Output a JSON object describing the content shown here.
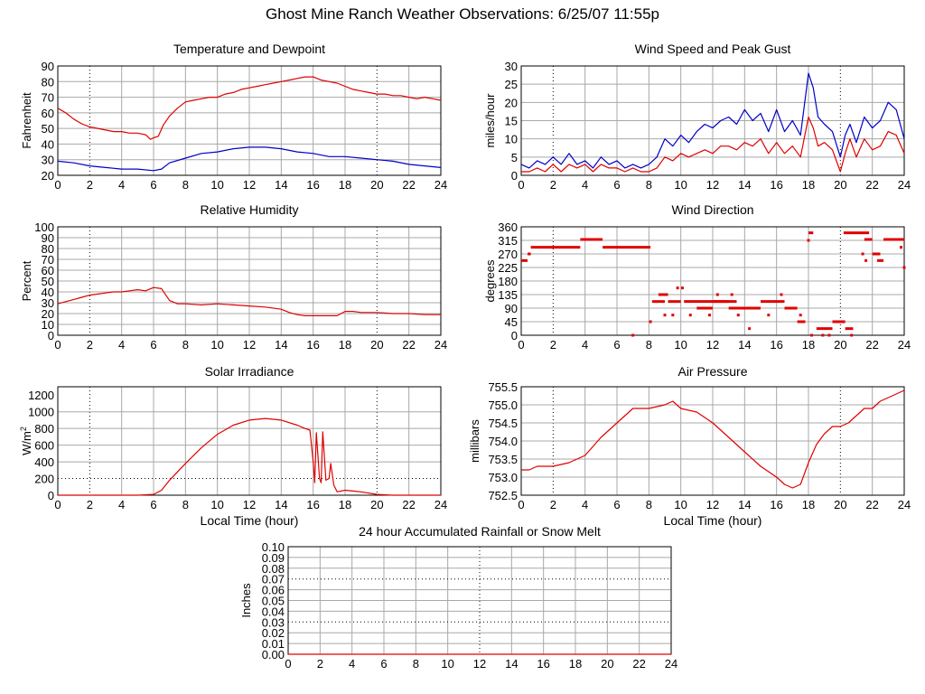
{
  "title": "Ghost Mine Ranch Weather Observations: 6/25/07 11:55p",
  "colors": {
    "red": "#e00000",
    "blue": "#0000c8",
    "grid": "#a8a8a8",
    "frame": "#000000"
  },
  "chart_data": [
    {
      "id": "temp",
      "type": "line",
      "title": "Temperature and Dewpoint",
      "ylabel": "Fahrenheit",
      "xlabel": "",
      "xlim": [
        0,
        24
      ],
      "ylim": [
        20,
        90
      ],
      "xticks": [
        0,
        2,
        4,
        6,
        8,
        10,
        12,
        14,
        16,
        18,
        20,
        22,
        24
      ],
      "yticks": [
        20,
        30,
        40,
        50,
        60,
        70,
        80,
        90
      ],
      "series": [
        {
          "color": "red",
          "x": [
            0,
            0.5,
            1,
            1.5,
            2,
            2.5,
            3,
            3.5,
            4,
            4.5,
            5,
            5.5,
            5.8,
            6,
            6.3,
            6.6,
            7,
            7.5,
            8,
            8.5,
            9,
            9.5,
            10,
            10.5,
            11,
            11.5,
            12,
            12.5,
            13,
            13.5,
            14,
            14.5,
            15,
            15.5,
            16,
            16.5,
            17,
            17.5,
            18,
            18.5,
            19,
            19.5,
            20,
            20.5,
            21,
            21.5,
            22,
            22.5,
            23,
            23.5,
            24
          ],
          "y": [
            63,
            60,
            56,
            53,
            51,
            50,
            49,
            48,
            48,
            47,
            47,
            46,
            43,
            44,
            45,
            52,
            58,
            63,
            67,
            68,
            69,
            70,
            70,
            72,
            73,
            75,
            76,
            77,
            78,
            79,
            80,
            81,
            82,
            83,
            83,
            81,
            80,
            79,
            77,
            75,
            74,
            73,
            72,
            72,
            71,
            71,
            70,
            69,
            70,
            69,
            68
          ]
        },
        {
          "color": "blue",
          "x": [
            0,
            1,
            2,
            3,
            4,
            5,
            6,
            6.5,
            7,
            8,
            9,
            10,
            11,
            12,
            13,
            14,
            15,
            16,
            17,
            18,
            19,
            20,
            21,
            22,
            23,
            24
          ],
          "y": [
            29,
            28,
            26,
            25,
            24,
            24,
            23,
            24,
            28,
            31,
            34,
            35,
            37,
            38,
            38,
            37,
            35,
            34,
            32,
            32,
            31,
            30,
            29,
            27,
            26,
            25
          ]
        }
      ]
    },
    {
      "id": "wind",
      "type": "line",
      "title": "Wind Speed and Peak Gust",
      "ylabel": "miles/hour",
      "xlabel": "",
      "xlim": [
        0,
        24
      ],
      "ylim": [
        0,
        30
      ],
      "xticks": [
        0,
        2,
        4,
        6,
        8,
        10,
        12,
        14,
        16,
        18,
        20,
        22,
        24
      ],
      "yticks": [
        0,
        5,
        10,
        15,
        20,
        25,
        30
      ],
      "series": [
        {
          "color": "blue",
          "x": [
            0,
            0.5,
            1,
            1.5,
            2,
            2.5,
            3,
            3.5,
            4,
            4.5,
            5,
            5.5,
            6,
            6.5,
            7,
            7.5,
            8,
            8.5,
            9,
            9.5,
            10,
            10.5,
            11,
            11.5,
            12,
            12.5,
            13,
            13.5,
            14,
            14.5,
            15,
            15.5,
            16,
            16.5,
            17,
            17.5,
            18,
            18.3,
            18.6,
            19,
            19.5,
            20,
            20.3,
            20.6,
            21,
            21.5,
            22,
            22.5,
            23,
            23.5,
            24
          ],
          "y": [
            3,
            2,
            4,
            3,
            5,
            3,
            6,
            3,
            4,
            2,
            5,
            3,
            4,
            2,
            3,
            2,
            3,
            5,
            10,
            8,
            11,
            9,
            12,
            14,
            13,
            15,
            16,
            14,
            18,
            15,
            17,
            12,
            18,
            12,
            15,
            11,
            28,
            24,
            16,
            14,
            12,
            5,
            11,
            14,
            9,
            16,
            13,
            15,
            20,
            18,
            10
          ]
        },
        {
          "color": "red",
          "x": [
            0,
            0.5,
            1,
            1.5,
            2,
            2.5,
            3,
            3.5,
            4,
            4.5,
            5,
            5.5,
            6,
            6.5,
            7,
            7.5,
            8,
            8.5,
            9,
            9.5,
            10,
            10.5,
            11,
            11.5,
            12,
            12.5,
            13,
            13.5,
            14,
            14.5,
            15,
            15.5,
            16,
            16.5,
            17,
            17.5,
            18,
            18.3,
            18.6,
            19,
            19.5,
            20,
            20.3,
            20.6,
            21,
            21.5,
            22,
            22.5,
            23,
            23.5,
            24
          ],
          "y": [
            1,
            1,
            2,
            1,
            3,
            1,
            3,
            2,
            3,
            1,
            3,
            2,
            2,
            1,
            2,
            1,
            1,
            2,
            5,
            4,
            6,
            5,
            6,
            7,
            6,
            8,
            8,
            7,
            9,
            8,
            10,
            6,
            9,
            6,
            8,
            5,
            16,
            13,
            8,
            9,
            7,
            1,
            6,
            10,
            5,
            10,
            7,
            8,
            12,
            11,
            6
          ]
        }
      ]
    },
    {
      "id": "humidity",
      "type": "line",
      "title": "Relative Humidity",
      "ylabel": "Percent",
      "xlabel": "",
      "xlim": [
        0,
        24
      ],
      "ylim": [
        0,
        100
      ],
      "xticks": [
        0,
        2,
        4,
        6,
        8,
        10,
        12,
        14,
        16,
        18,
        20,
        22,
        24
      ],
      "yticks": [
        0,
        10,
        20,
        30,
        40,
        50,
        60,
        70,
        80,
        90,
        100
      ],
      "series": [
        {
          "color": "red",
          "x": [
            0,
            0.5,
            1,
            1.5,
            2,
            2.5,
            3,
            3.5,
            4,
            4.5,
            5,
            5.5,
            6,
            6.5,
            7,
            7.5,
            8,
            9,
            10,
            11,
            12,
            13,
            14,
            14.5,
            15,
            15.5,
            16,
            16.5,
            17,
            17.5,
            18,
            18.5,
            19,
            20,
            21,
            22,
            23,
            24
          ],
          "y": [
            29,
            31,
            33,
            35,
            37,
            38,
            39,
            40,
            40,
            41,
            42,
            41,
            44,
            43,
            32,
            29,
            29,
            28,
            29,
            28,
            27,
            26,
            24,
            21,
            19,
            18,
            18,
            18,
            18,
            18,
            22,
            22,
            21,
            21,
            20,
            20,
            19,
            19
          ]
        }
      ]
    },
    {
      "id": "winddir",
      "type": "scatter",
      "title": "Wind Direction",
      "ylabel": "degrees",
      "xlabel": "",
      "xlim": [
        0,
        24
      ],
      "ylim": [
        0,
        360
      ],
      "xticks": [
        0,
        2,
        4,
        6,
        8,
        10,
        12,
        14,
        16,
        18,
        20,
        22,
        24
      ],
      "yticks": [
        0,
        45,
        90,
        135,
        180,
        225,
        270,
        315,
        360
      ],
      "series": [
        {
          "color": "red",
          "segments": [
            [
              0,
              0.4,
              248
            ],
            [
              0.4,
              0.6,
              270
            ],
            [
              0.6,
              3.7,
              292
            ],
            [
              3.7,
              5.1,
              318
            ],
            [
              5.1,
              8.1,
              292
            ],
            [
              8.2,
              9.0,
              112
            ],
            [
              8.6,
              9.2,
              135
            ],
            [
              9.2,
              10.0,
              112
            ],
            [
              10.2,
              13.0,
              112
            ],
            [
              11.0,
              12.0,
              90
            ],
            [
              12.0,
              13.5,
              112
            ],
            [
              13.0,
              15.0,
              90
            ],
            [
              15.0,
              16.5,
              112
            ],
            [
              16.5,
              17.3,
              90
            ],
            [
              17.3,
              17.8,
              45
            ],
            [
              18.0,
              18.3,
              340
            ],
            [
              18.5,
              19.5,
              22
            ],
            [
              19.5,
              20.3,
              45
            ],
            [
              20.3,
              20.8,
              22
            ],
            [
              20.2,
              21.0,
              340
            ],
            [
              21.0,
              21.8,
              340
            ],
            [
              21.5,
              22.0,
              318
            ],
            [
              22.0,
              22.5,
              270
            ],
            [
              22.3,
              22.7,
              248
            ],
            [
              22.7,
              24.0,
              318
            ]
          ],
          "points": [
            [
              8.1,
              45
            ],
            [
              9.0,
              67
            ],
            [
              9.5,
              67
            ],
            [
              9.8,
              157
            ],
            [
              10.1,
              157
            ],
            [
              10.6,
              67
            ],
            [
              11.8,
              67
            ],
            [
              12.3,
              135
            ],
            [
              13.2,
              135
            ],
            [
              13.6,
              67
            ],
            [
              14.3,
              22
            ],
            [
              15.5,
              67
            ],
            [
              17.5,
              67
            ],
            [
              18.0,
              315
            ],
            [
              18.2,
              0
            ],
            [
              18.9,
              0
            ],
            [
              19.3,
              0
            ],
            [
              20.7,
              0
            ],
            [
              21.4,
              270
            ],
            [
              21.6,
              248
            ],
            [
              23.8,
              292
            ],
            [
              24.0,
              225
            ],
            [
              7.0,
              0
            ],
            [
              16.3,
              135
            ]
          ]
        }
      ]
    },
    {
      "id": "solar",
      "type": "line",
      "title": "Solar Irradiance",
      "ylabel": "W/m",
      "ylabel_sup": "2",
      "xlabel": "Local Time (hour)",
      "xlim": [
        0,
        24
      ],
      "ylim": [
        0,
        1300
      ],
      "xticks": [
        0,
        2,
        4,
        6,
        8,
        10,
        12,
        14,
        16,
        18,
        20,
        22,
        24
      ],
      "yticks": [
        0,
        200,
        400,
        600,
        800,
        1000,
        1200
      ],
      "series": [
        {
          "color": "red",
          "x": [
            0,
            5,
            6,
            6.5,
            7,
            8,
            9,
            10,
            11,
            12,
            13,
            14,
            15,
            15.5,
            15.8,
            16.0,
            16.1,
            16.2,
            16.4,
            16.5,
            16.6,
            16.8,
            17.0,
            17.1,
            17.3,
            17.5,
            18,
            18.5,
            19,
            20,
            21,
            22,
            23,
            24
          ],
          "y": [
            0,
            0,
            10,
            60,
            180,
            380,
            570,
            730,
            840,
            900,
            920,
            900,
            840,
            800,
            780,
            400,
            150,
            750,
            200,
            150,
            760,
            180,
            200,
            380,
            120,
            40,
            60,
            50,
            40,
            10,
            0,
            0,
            0,
            0
          ]
        }
      ]
    },
    {
      "id": "pressure",
      "type": "line",
      "title": "Air Pressure",
      "ylabel": "millibars",
      "xlabel": "Local Time (hour)",
      "xlim": [
        0,
        24
      ],
      "ylim": [
        752.5,
        755.5
      ],
      "xticks": [
        0,
        2,
        4,
        6,
        8,
        10,
        12,
        14,
        16,
        18,
        20,
        22,
        24
      ],
      "yticks": [
        752.5,
        753.0,
        753.5,
        754.0,
        754.5,
        755.0,
        755.5
      ],
      "series": [
        {
          "color": "red",
          "x": [
            0,
            0.5,
            1,
            2,
            3,
            3.5,
            4,
            5,
            6,
            7,
            7.5,
            8,
            9,
            9.5,
            10,
            11,
            12,
            13,
            14,
            15,
            16,
            16.5,
            17,
            17.5,
            18,
            18.5,
            19,
            19.5,
            20,
            20.5,
            21,
            21.5,
            22,
            22.5,
            23,
            23.5,
            24
          ],
          "y": [
            753.2,
            753.2,
            753.3,
            753.3,
            753.4,
            753.5,
            753.6,
            754.1,
            754.5,
            754.9,
            754.9,
            754.9,
            755.0,
            755.1,
            754.9,
            754.8,
            754.5,
            754.1,
            753.7,
            753.3,
            753.0,
            752.8,
            752.7,
            752.8,
            753.4,
            753.9,
            754.2,
            754.4,
            754.4,
            754.5,
            754.7,
            754.9,
            754.9,
            755.1,
            755.2,
            755.3,
            755.4
          ]
        }
      ]
    },
    {
      "id": "rain",
      "type": "line",
      "title": "24 hour Accumulated Rainfall or Snow Melt",
      "ylabel": "Inches",
      "xlabel": "",
      "xlim": [
        0,
        24
      ],
      "ylim": [
        0,
        0.1
      ],
      "xticks": [
        0,
        2,
        4,
        6,
        8,
        10,
        12,
        14,
        16,
        18,
        20,
        22,
        24
      ],
      "yticks": [
        "0.00",
        "0.01",
        "0.02",
        "0.03",
        "0.04",
        "0.05",
        "0.06",
        "0.07",
        "0.08",
        "0.09",
        "0.10"
      ],
      "series": [
        {
          "color": "red",
          "x": [
            0,
            24
          ],
          "y": [
            0,
            0
          ]
        }
      ]
    }
  ]
}
